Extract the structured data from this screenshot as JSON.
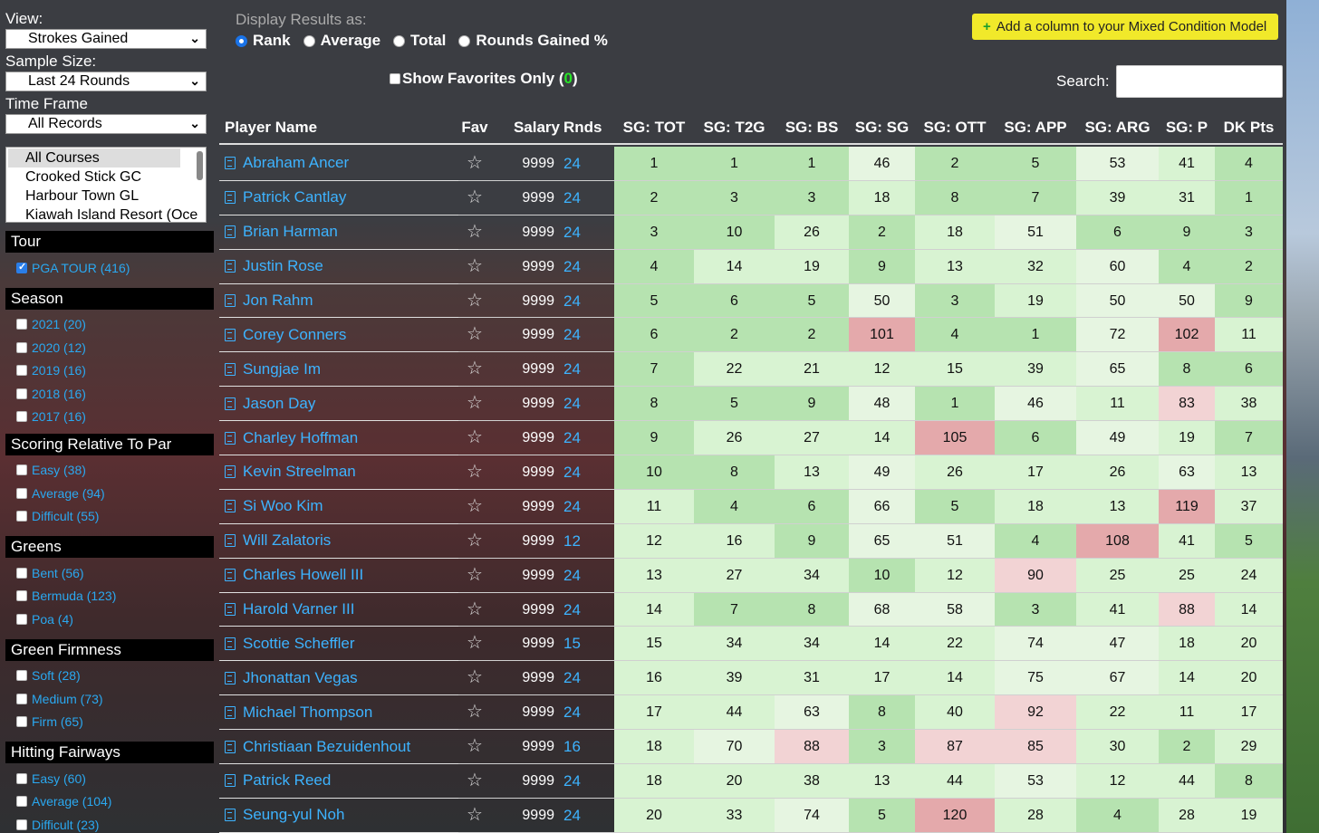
{
  "sidebar": {
    "view_label": "View:",
    "view_value": "Strokes Gained",
    "sample_label": "Sample Size:",
    "sample_value": "Last 24 Rounds",
    "timeframe_label": "Time Frame",
    "timeframe_value": "All Records",
    "courses": [
      "All Courses",
      "Crooked Stick GC",
      "Harbour Town GL",
      "Kiawah Island Resort (Oce"
    ],
    "sections": [
      {
        "title": "Tour",
        "options": [
          {
            "label": "PGA TOUR (416)",
            "checked": true
          }
        ]
      },
      {
        "title": "Season",
        "options": [
          {
            "label": "2021 (20)"
          },
          {
            "label": "2020 (12)"
          },
          {
            "label": "2019 (16)"
          },
          {
            "label": "2018 (16)"
          },
          {
            "label": "2017 (16)"
          }
        ]
      },
      {
        "title": "Scoring Relative To Par",
        "options": [
          {
            "label": "Easy (38)"
          },
          {
            "label": "Average (94)"
          },
          {
            "label": "Difficult (55)"
          }
        ]
      },
      {
        "title": "Greens",
        "options": [
          {
            "label": "Bent (56)"
          },
          {
            "label": "Bermuda (123)"
          },
          {
            "label": "Poa (4)"
          }
        ]
      },
      {
        "title": "Green Firmness",
        "options": [
          {
            "label": "Soft (28)"
          },
          {
            "label": "Medium (73)"
          },
          {
            "label": "Firm (65)"
          }
        ]
      },
      {
        "title": "Hitting Fairways",
        "options": [
          {
            "label": "Easy (60)"
          },
          {
            "label": "Average (104)"
          },
          {
            "label": "Difficult (23)"
          }
        ]
      }
    ]
  },
  "header": {
    "display_label": "Display Results as:",
    "radios": [
      {
        "label": "Rank",
        "selected": true
      },
      {
        "label": "Average",
        "selected": false
      },
      {
        "label": "Total",
        "selected": false
      },
      {
        "label": "Rounds Gained %",
        "selected": false
      }
    ],
    "favorites_label": "Show Favorites Only (",
    "favorites_count": "0",
    "favorites_close": ")",
    "add_column": "Add a column to your Mixed Condition Model",
    "search_label": "Search:",
    "search_value": ""
  },
  "table": {
    "columns": [
      "Player Name",
      "Fav",
      "Salary",
      "Rnds",
      "SG: TOT",
      "SG: T2G",
      "SG: BS",
      "SG: SG",
      "SG: OTT",
      "SG: APP",
      "SG: ARG",
      "SG: P",
      "DK Pts"
    ],
    "rows": [
      {
        "name": "Abraham Ancer",
        "salary": "9999",
        "rnds": "24",
        "stats": [
          1,
          1,
          1,
          46,
          2,
          5,
          53,
          41,
          4
        ]
      },
      {
        "name": "Patrick Cantlay",
        "salary": "9999",
        "rnds": "24",
        "stats": [
          2,
          3,
          3,
          18,
          8,
          7,
          39,
          31,
          1
        ]
      },
      {
        "name": "Brian Harman",
        "salary": "9999",
        "rnds": "24",
        "stats": [
          3,
          10,
          26,
          2,
          18,
          51,
          6,
          9,
          3
        ]
      },
      {
        "name": "Justin Rose",
        "salary": "9999",
        "rnds": "24",
        "stats": [
          4,
          14,
          19,
          9,
          13,
          32,
          60,
          4,
          2
        ]
      },
      {
        "name": "Jon Rahm",
        "salary": "9999",
        "rnds": "24",
        "stats": [
          5,
          6,
          5,
          50,
          3,
          19,
          50,
          50,
          9
        ]
      },
      {
        "name": "Corey Conners",
        "salary": "9999",
        "rnds": "24",
        "stats": [
          6,
          2,
          2,
          101,
          4,
          1,
          72,
          102,
          11
        ]
      },
      {
        "name": "Sungjae Im",
        "salary": "9999",
        "rnds": "24",
        "stats": [
          7,
          22,
          21,
          12,
          15,
          39,
          65,
          8,
          6
        ]
      },
      {
        "name": "Jason Day",
        "salary": "9999",
        "rnds": "24",
        "stats": [
          8,
          5,
          9,
          48,
          1,
          46,
          11,
          83,
          38
        ]
      },
      {
        "name": "Charley Hoffman",
        "salary": "9999",
        "rnds": "24",
        "stats": [
          9,
          26,
          27,
          14,
          105,
          6,
          49,
          19,
          7
        ]
      },
      {
        "name": "Kevin Streelman",
        "salary": "9999",
        "rnds": "24",
        "stats": [
          10,
          8,
          13,
          49,
          26,
          17,
          26,
          63,
          13
        ]
      },
      {
        "name": "Si Woo Kim",
        "salary": "9999",
        "rnds": "24",
        "stats": [
          11,
          4,
          6,
          66,
          5,
          18,
          13,
          119,
          37
        ]
      },
      {
        "name": "Will Zalatoris",
        "salary": "9999",
        "rnds": "12",
        "stats": [
          12,
          16,
          9,
          65,
          51,
          4,
          108,
          41,
          5
        ]
      },
      {
        "name": "Charles Howell III",
        "salary": "9999",
        "rnds": "24",
        "stats": [
          13,
          27,
          34,
          10,
          12,
          90,
          25,
          25,
          24
        ]
      },
      {
        "name": "Harold Varner III",
        "salary": "9999",
        "rnds": "24",
        "stats": [
          14,
          7,
          8,
          68,
          58,
          3,
          41,
          88,
          14
        ]
      },
      {
        "name": "Scottie Scheffler",
        "salary": "9999",
        "rnds": "15",
        "stats": [
          15,
          34,
          34,
          14,
          22,
          74,
          47,
          18,
          20
        ]
      },
      {
        "name": "Jhonattan Vegas",
        "salary": "9999",
        "rnds": "24",
        "stats": [
          16,
          39,
          31,
          17,
          14,
          75,
          67,
          14,
          20
        ]
      },
      {
        "name": "Michael Thompson",
        "salary": "9999",
        "rnds": "24",
        "stats": [
          17,
          44,
          63,
          8,
          40,
          92,
          22,
          11,
          17
        ]
      },
      {
        "name": "Christiaan Bezuidenhout",
        "salary": "9999",
        "rnds": "16",
        "stats": [
          18,
          70,
          88,
          3,
          87,
          85,
          30,
          2,
          29
        ]
      },
      {
        "name": "Patrick Reed",
        "salary": "9999",
        "rnds": "24",
        "stats": [
          18,
          20,
          38,
          13,
          44,
          53,
          12,
          44,
          8
        ]
      },
      {
        "name": "Seung-yul Noh",
        "salary": "9999",
        "rnds": "24",
        "stats": [
          20,
          33,
          74,
          5,
          120,
          28,
          4,
          28,
          19
        ]
      }
    ]
  },
  "colors": {
    "good": "#b6e3b0",
    "mid": "#d8f3d2",
    "light": "#e6f5e1",
    "bad": "#e4a9ab",
    "warn": "#f2d3d4"
  }
}
